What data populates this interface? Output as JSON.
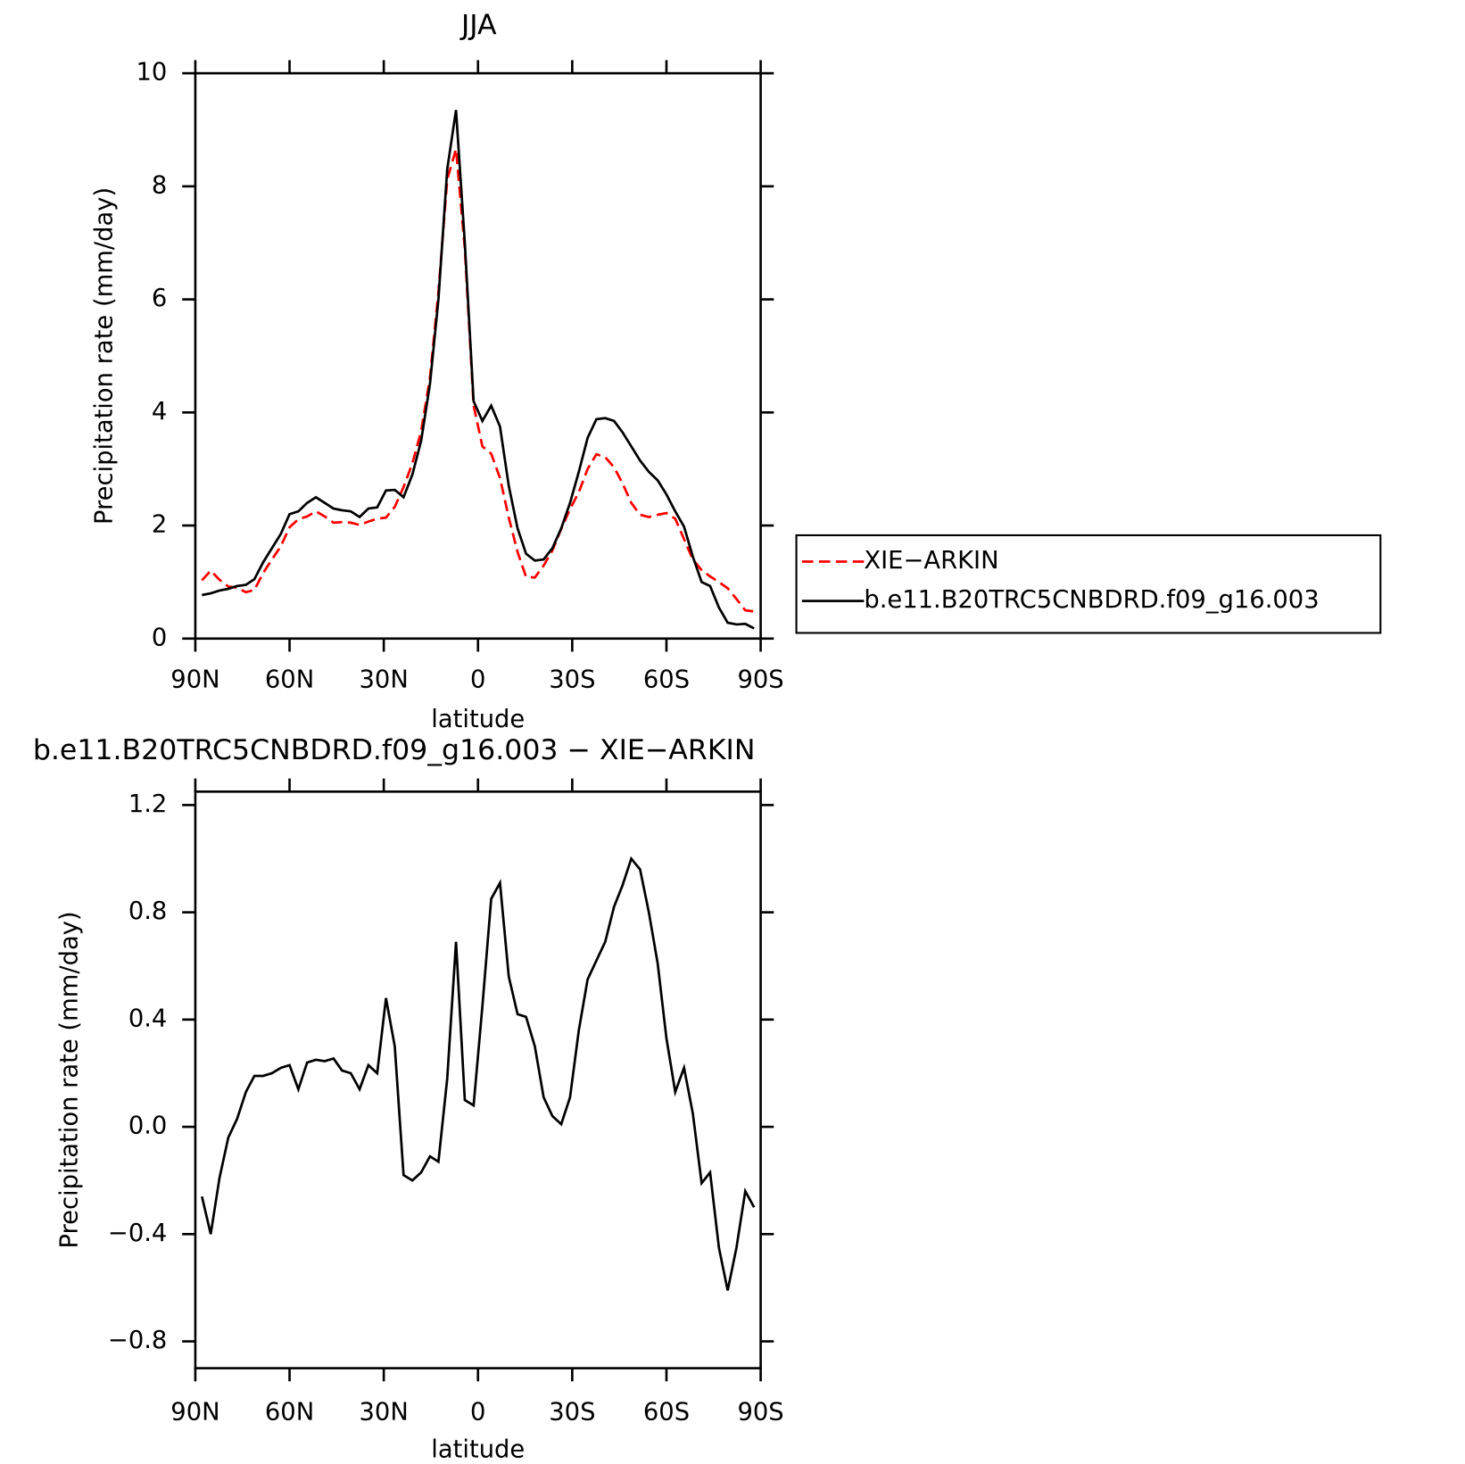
{
  "chart_data": [
    {
      "type": "line",
      "title": "JJA",
      "xlabel": "latitude",
      "ylabel": "Precipitation rate (mm/day)",
      "x": [
        87.9,
        85.1,
        82.3,
        79.5,
        76.7,
        73.9,
        71.2,
        68.4,
        65.6,
        62.8,
        60.0,
        57.2,
        54.4,
        51.6,
        48.8,
        46.0,
        43.3,
        40.5,
        37.7,
        34.9,
        32.1,
        29.3,
        26.5,
        23.7,
        20.9,
        18.1,
        15.3,
        12.6,
        9.8,
        7.0,
        4.2,
        1.4,
        -1.4,
        -4.2,
        -7.0,
        -9.8,
        -12.6,
        -15.3,
        -18.1,
        -20.9,
        -23.7,
        -26.5,
        -29.3,
        -32.1,
        -34.9,
        -37.7,
        -40.5,
        -43.3,
        -46.0,
        -48.8,
        -51.6,
        -54.4,
        -57.2,
        -60.0,
        -62.8,
        -65.6,
        -68.4,
        -71.2,
        -73.9,
        -76.7,
        -79.5,
        -82.3,
        -85.1,
        -87.9
      ],
      "series": [
        {
          "name": "XIE−ARKIN",
          "color": "#ff0000",
          "dash": true,
          "values": [
            1.03,
            1.2,
            1.04,
            0.92,
            0.9,
            0.82,
            0.86,
            1.16,
            1.4,
            1.63,
            1.97,
            2.11,
            2.16,
            2.25,
            2.16,
            2.05,
            2.06,
            2.05,
            2.01,
            2.07,
            2.12,
            2.14,
            2.33,
            2.68,
            3.1,
            3.67,
            4.61,
            6.13,
            8.12,
            8.66,
            6.9,
            4.12,
            3.4,
            3.27,
            2.84,
            2.14,
            1.53,
            1.09,
            1.08,
            1.29,
            1.56,
            1.94,
            2.29,
            2.59,
            3.0,
            3.26,
            3.21,
            3.03,
            2.75,
            2.4,
            2.19,
            2.15,
            2.19,
            2.22,
            2.12,
            1.76,
            1.4,
            1.21,
            1.1,
            1.0,
            0.89,
            0.7,
            0.5,
            0.48
          ]
        },
        {
          "name": "b.e11.B20TRC5CNBDRD.f09_g16.003",
          "color": "#000000",
          "dash": false,
          "values": [
            0.77,
            0.8,
            0.85,
            0.88,
            0.93,
            0.95,
            1.05,
            1.35,
            1.6,
            1.85,
            2.2,
            2.25,
            2.4,
            2.5,
            2.4,
            2.3,
            2.27,
            2.25,
            2.15,
            2.3,
            2.32,
            2.62,
            2.63,
            2.5,
            2.9,
            3.5,
            4.5,
            6.0,
            8.3,
            9.35,
            7.0,
            4.2,
            3.85,
            4.12,
            3.75,
            2.7,
            1.95,
            1.5,
            1.38,
            1.4,
            1.6,
            1.95,
            2.4,
            2.95,
            3.55,
            3.88,
            3.9,
            3.85,
            3.65,
            3.4,
            3.15,
            2.95,
            2.8,
            2.55,
            2.25,
            1.98,
            1.45,
            1.0,
            0.93,
            0.55,
            0.28,
            0.25,
            0.26,
            0.18
          ]
        }
      ],
      "xlim": [
        90,
        -90
      ],
      "xticks": [
        {
          "value": 90,
          "label": "90N"
        },
        {
          "value": 60,
          "label": "60N"
        },
        {
          "value": 30,
          "label": "30N"
        },
        0,
        {
          "value": -30,
          "label": "30S"
        },
        {
          "value": -60,
          "label": "60S"
        },
        {
          "value": -90,
          "label": "90S"
        }
      ],
      "ylim": [
        0,
        10
      ],
      "yticks": [
        0,
        2,
        4,
        6,
        8,
        10
      ],
      "legend": "right"
    },
    {
      "type": "line",
      "title": "b.e11.B20TRC5CNBDRD.f09_g16.003 − XIE−ARKIN",
      "xlabel": "latitude",
      "ylabel": "Precipitation rate (mm/day)",
      "x": [
        87.9,
        85.1,
        82.3,
        79.5,
        76.7,
        73.9,
        71.2,
        68.4,
        65.6,
        62.8,
        60.0,
        57.2,
        54.4,
        51.6,
        48.8,
        46.0,
        43.3,
        40.5,
        37.7,
        34.9,
        32.1,
        29.3,
        26.5,
        23.7,
        20.9,
        18.1,
        15.3,
        12.6,
        9.8,
        7.0,
        4.2,
        1.4,
        -1.4,
        -4.2,
        -7.0,
        -9.8,
        -12.6,
        -15.3,
        -18.1,
        -20.9,
        -23.7,
        -26.5,
        -29.3,
        -32.1,
        -34.9,
        -37.7,
        -40.5,
        -43.3,
        -46.0,
        -48.8,
        -51.6,
        -54.4,
        -57.2,
        -60.0,
        -62.8,
        -65.6,
        -68.4,
        -71.2,
        -73.9,
        -76.7,
        -79.5,
        -82.3,
        -85.1,
        -87.9
      ],
      "series": [
        {
          "color": "#000000",
          "dash": false,
          "values": [
            -0.26,
            -0.4,
            -0.19,
            -0.04,
            0.03,
            0.13,
            0.19,
            0.19,
            0.2,
            0.22,
            0.23,
            0.14,
            0.24,
            0.25,
            0.245,
            0.255,
            0.21,
            0.2,
            0.14,
            0.23,
            0.2,
            0.48,
            0.3,
            -0.18,
            -0.2,
            -0.17,
            -0.11,
            -0.13,
            0.18,
            0.69,
            0.1,
            0.08,
            0.45,
            0.85,
            0.91,
            0.56,
            0.42,
            0.41,
            0.3,
            0.11,
            0.04,
            0.01,
            0.11,
            0.36,
            0.55,
            0.62,
            0.69,
            0.82,
            0.9,
            1.0,
            0.96,
            0.8,
            0.61,
            0.33,
            0.13,
            0.22,
            0.05,
            -0.21,
            -0.17,
            -0.45,
            -0.61,
            -0.45,
            -0.24,
            -0.3
          ]
        }
      ],
      "xlim": [
        90,
        -90
      ],
      "xticks": [
        {
          "value": 90,
          "label": "90N"
        },
        {
          "value": 60,
          "label": "60N"
        },
        {
          "value": 30,
          "label": "30N"
        },
        0,
        {
          "value": -30,
          "label": "30S"
        },
        {
          "value": -60,
          "label": "60S"
        },
        {
          "value": -90,
          "label": "90S"
        }
      ],
      "ylim": [
        -0.9,
        1.25
      ],
      "yticks": [
        {
          "value": -0.8,
          "label": "−0.8"
        },
        {
          "value": -0.4,
          "label": "−0.4"
        },
        {
          "value": 0,
          "label": "0.0"
        },
        0.4,
        0.8,
        1.2
      ]
    }
  ]
}
